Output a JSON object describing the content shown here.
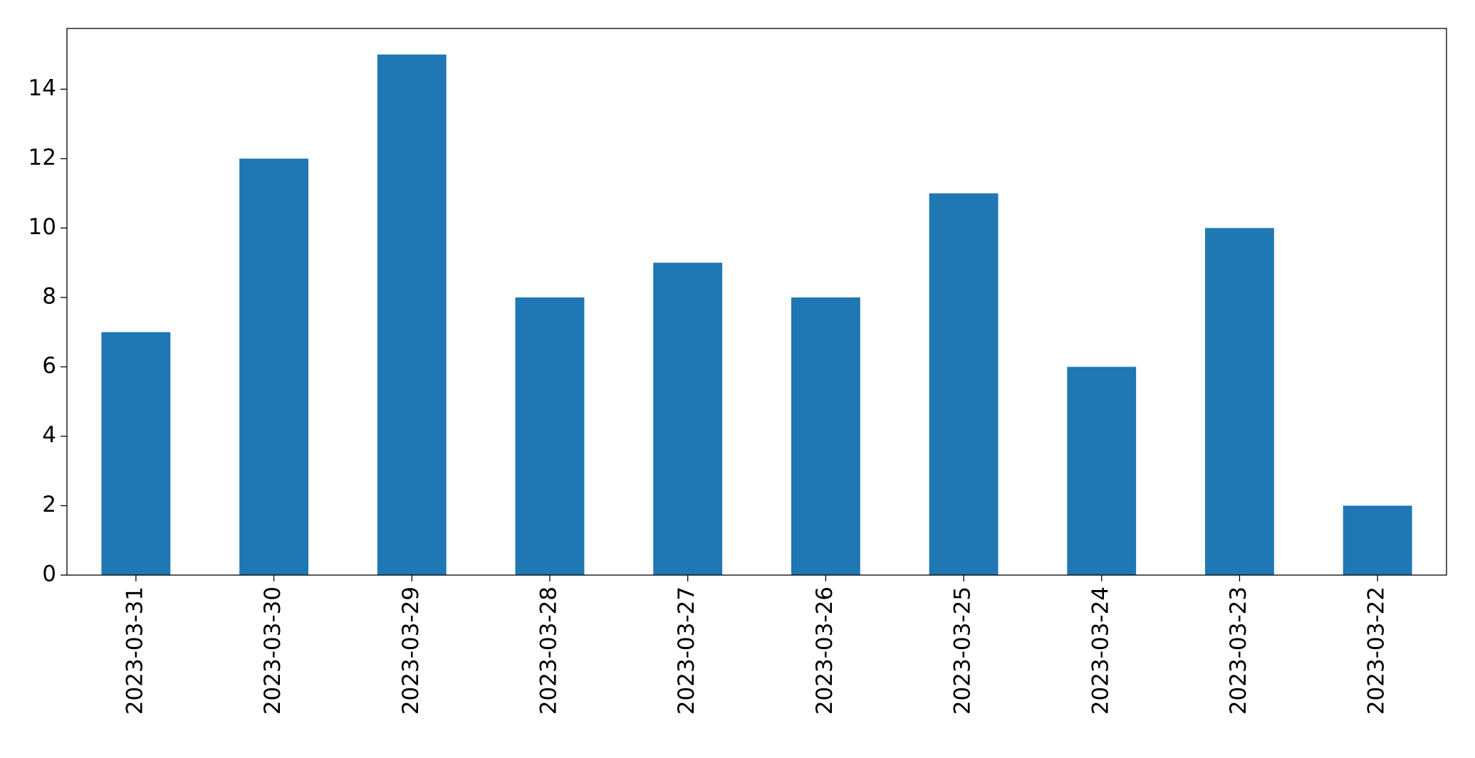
{
  "chart_data": {
    "type": "bar",
    "categories": [
      "2023-03-31",
      "2023-03-30",
      "2023-03-29",
      "2023-03-28",
      "2023-03-27",
      "2023-03-26",
      "2023-03-25",
      "2023-03-24",
      "2023-03-23",
      "2023-03-22"
    ],
    "values": [
      7,
      12,
      15,
      8,
      9,
      8,
      11,
      6,
      10,
      2
    ],
    "color": "#1f77b4",
    "ylim": [
      0,
      15.75
    ],
    "yticks": [
      0,
      2,
      4,
      6,
      8,
      10,
      12,
      14
    ],
    "grid": false
  }
}
